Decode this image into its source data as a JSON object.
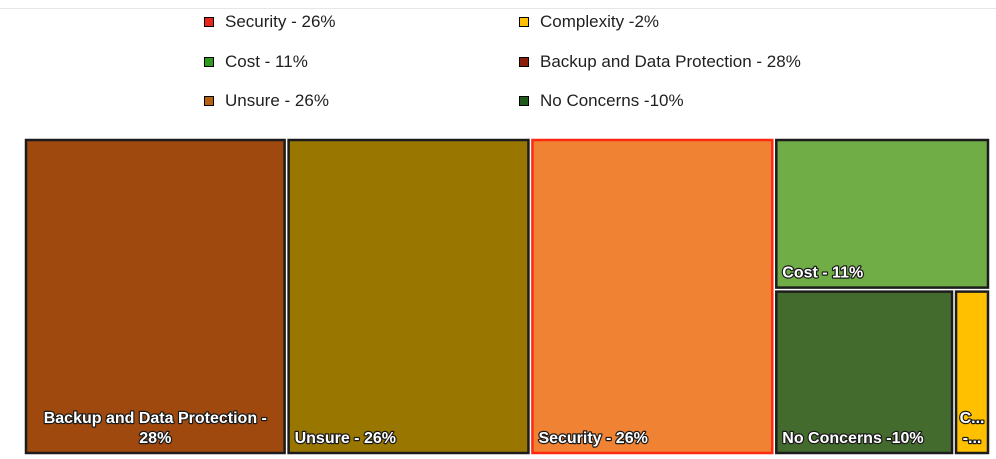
{
  "chart_data": {
    "type": "treemap",
    "title": "",
    "legend": {
      "placement": "top",
      "entries": [
        {
          "id": "security",
          "label": "Security - 26%",
          "color": "#e8261a"
        },
        {
          "id": "complexity",
          "label": "Complexity -2%",
          "color": "#ffc000"
        },
        {
          "id": "cost",
          "label": "Cost - 11%",
          "color": "#2e9a1e"
        },
        {
          "id": "backup",
          "label": "Backup and Data Protection - 28%",
          "color": "#8a1f0a"
        },
        {
          "id": "unsure",
          "label": "Unsure - 26%",
          "color": "#b86010"
        },
        {
          "id": "noconcerns",
          "label": "No Concerns -10%",
          "color": "#1f5a1a"
        }
      ]
    },
    "series": [
      {
        "id": "backup",
        "label_lines": [
          "Backup and Data Protection -",
          "28%"
        ],
        "value": 28,
        "fill": "#a0490f",
        "border": "#1c1c1c"
      },
      {
        "id": "unsure",
        "label_lines": [
          "Unsure - 26%"
        ],
        "value": 26,
        "fill": "#997600",
        "border": "#1c1c1c"
      },
      {
        "id": "security",
        "label_lines": [
          "Security - 26%"
        ],
        "value": 26,
        "fill": "#f08233",
        "border": "#ff2a10"
      },
      {
        "id": "cost",
        "label_lines": [
          "Cost - 11%"
        ],
        "value": 11,
        "fill": "#70ad47",
        "border": "#1c1c1c"
      },
      {
        "id": "noconcerns",
        "label_lines": [
          "No Concerns -10%"
        ],
        "value": 10,
        "fill": "#446b2e",
        "border": "#1c1c1c"
      },
      {
        "id": "complexity",
        "label_lines": [
          "C...",
          "-..."
        ],
        "value": 2,
        "fill": "#ffc000",
        "border": "#1c1c1c"
      }
    ]
  }
}
